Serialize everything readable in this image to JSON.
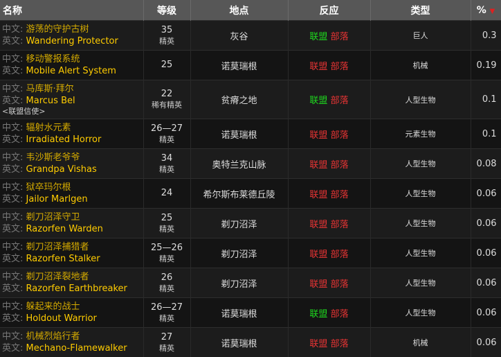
{
  "headers": {
    "name": "名称",
    "level": "等级",
    "location": "地点",
    "reaction": "反应",
    "type": "类型",
    "pct": "%"
  },
  "labels": {
    "cn": "中文:",
    "en": "英文:",
    "alliance": "联盟",
    "horde": "部落"
  },
  "colors": {
    "friendly": "#1ed81e",
    "hostile": "#e83434"
  },
  "rows": [
    {
      "cn": "游荡的守护古树",
      "en": "Wandering Protector",
      "level": "35",
      "rank": "精英",
      "location": "灰谷",
      "alliance": "friendly",
      "horde": "hostile",
      "type": "巨人",
      "pct": "0.3"
    },
    {
      "cn": "移动警报系统",
      "en": "Mobile Alert System",
      "level": "25",
      "location": "诺莫瑞根",
      "alliance": "hostile",
      "horde": "hostile",
      "type": "机械",
      "pct": "0.19"
    },
    {
      "cn": "马库斯·拜尔",
      "en": "Marcus Bel",
      "note": "<联盟信使>",
      "level": "22",
      "rank": "稀有精英",
      "location": "贫瘠之地",
      "alliance": "friendly",
      "horde": "hostile",
      "type": "人型生物",
      "pct": "0.1"
    },
    {
      "cn": "辐射水元素",
      "en": "Irradiated Horror",
      "level": "26—27",
      "rank": "精英",
      "location": "诺莫瑞根",
      "alliance": "hostile",
      "horde": "hostile",
      "type": "元素生物",
      "pct": "0.1"
    },
    {
      "cn": "韦沙斯老爷爷",
      "en": "Grandpa Vishas",
      "level": "34",
      "rank": "精英",
      "location": "奥特兰克山脉",
      "alliance": "hostile",
      "horde": "hostile",
      "type": "人型生物",
      "pct": "0.08"
    },
    {
      "cn": "狱卒玛尔根",
      "en": "Jailor Marlgen",
      "level": "24",
      "location": "希尔斯布莱德丘陵",
      "alliance": "hostile",
      "horde": "hostile",
      "type": "人型生物",
      "pct": "0.06"
    },
    {
      "cn": "剃刀沼泽守卫",
      "en": "Razorfen Warden",
      "level": "25",
      "rank": "精英",
      "location": "剃刀沼泽",
      "alliance": "hostile",
      "horde": "hostile",
      "type": "人型生物",
      "pct": "0.06"
    },
    {
      "cn": "剃刀沼泽捕猎者",
      "en": "Razorfen Stalker",
      "level": "25—26",
      "rank": "精英",
      "location": "剃刀沼泽",
      "alliance": "hostile",
      "horde": "hostile",
      "type": "人型生物",
      "pct": "0.06"
    },
    {
      "cn": "剃刀沼泽裂地者",
      "en": "Razorfen Earthbreaker",
      "level": "26",
      "rank": "精英",
      "location": "剃刀沼泽",
      "alliance": "hostile",
      "horde": "hostile",
      "type": "人型生物",
      "pct": "0.06"
    },
    {
      "cn": "躲起来的战士",
      "en": "Holdout Warrior",
      "level": "26—27",
      "rank": "精英",
      "location": "诺莫瑞根",
      "alliance": "friendly",
      "horde": "hostile",
      "type": "人型生物",
      "pct": "0.06"
    },
    {
      "cn": "机械烈焰行者",
      "en": "Mechano-Flamewalker",
      "level": "27",
      "rank": "精英",
      "location": "诺莫瑞根",
      "alliance": "hostile",
      "horde": "hostile",
      "type": "机械",
      "pct": "0.06"
    }
  ]
}
